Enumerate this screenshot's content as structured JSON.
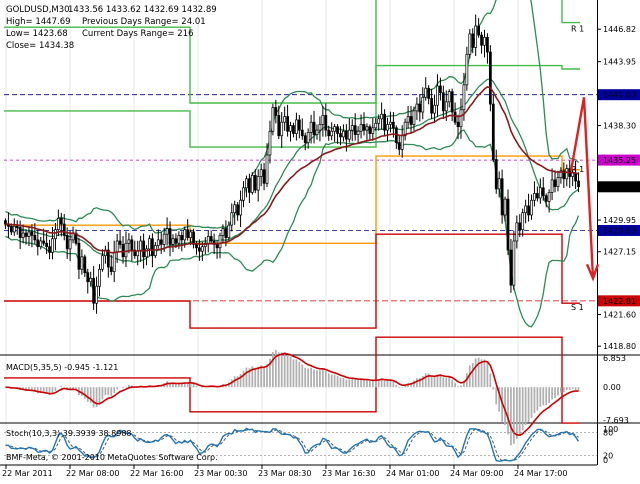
{
  "header": {
    "symbol": "GOLDUSD,M30",
    "ohlc": "1433.56 1433.62 1432.69 1432.89",
    "high": "High= 1447.69",
    "low": "Low= 1423.68",
    "close": "Close= 1434.38",
    "prev_range": "Previous Days Range= 24.01",
    "curr_range": "Current Days Range= 216"
  },
  "colors": {
    "candle": "#000000",
    "bollinger": "#2e8b57",
    "moving_average": "#8b1a1a",
    "macd_line": "#cc0000",
    "macd_hist": "#b0b0b0",
    "stoch_main": "#1f77b4",
    "stoch_signal": "#555555",
    "pivot": "#00008b",
    "resistance": "#44bb44",
    "support": "#cc0000",
    "orange": "#ff9900",
    "magenta": "#cc00cc",
    "arrow": "#dd2222"
  },
  "chart_data": [
    {
      "type": "candlestick",
      "title": "GOLDUSD,M30",
      "x_tick_labels": [
        "22 Mar 2011",
        "22 Mar 08:00",
        "22 Mar 16:00",
        "23 Mar 00:30",
        "23 Mar 08:30",
        "23 Mar 16:30",
        "24 Mar 01:00",
        "24 Mar 09:00",
        "24 Mar 17:00"
      ],
      "y_tick_labels": [
        "1446.82",
        "1443.95",
        "1441.03",
        "1438.30",
        "1435.25",
        "1432.89",
        "1429.95",
        "1429.03",
        "1427.15",
        "1422.81",
        "1421.60",
        "1418.80"
      ],
      "y_axis": [
        {
          "label": "1446.82",
          "value": 1446.82
        },
        {
          "label": "1443.95",
          "value": 1443.95
        },
        {
          "label": "1441.03",
          "value": 1441.03,
          "tag": "pivot"
        },
        {
          "label": "1438.30",
          "value": 1438.3
        },
        {
          "label": "1435.25",
          "value": 1435.25,
          "tag": "magenta"
        },
        {
          "label": "1432.89",
          "value": 1432.89,
          "tag": "current"
        },
        {
          "label": "1429.95",
          "value": 1429.95
        },
        {
          "label": "1429.03",
          "value": 1429.03,
          "tag": "pivot"
        },
        {
          "label": "1427.15",
          "value": 1427.15
        },
        {
          "label": "1422.81",
          "value": 1422.81,
          "tag": "support"
        },
        {
          "label": "1421.60",
          "value": 1421.6
        },
        {
          "label": "1418.80",
          "value": 1418.8
        }
      ],
      "ylim": [
        1418.2,
        1449.4
      ],
      "level_labels": [
        "R 1",
        "S 1",
        "R 1"
      ],
      "close_path": [
        1429.6,
        1429.4,
        1428.9,
        1429.4,
        1429.3,
        1428.4,
        1428.8,
        1428.5,
        1428.9,
        1428.6,
        1428.2,
        1427.6,
        1428.1,
        1427.9,
        1427.6,
        1427.1,
        1428.3,
        1429.1,
        1430.1,
        1429.6,
        1428.6,
        1427.4,
        1428.2,
        1428.8,
        1427.9,
        1425.6,
        1426.7,
        1425.3,
        1424.5,
        1424.8,
        1422.6,
        1424.1,
        1425.6,
        1426.8,
        1427.3,
        1425.8,
        1425.4,
        1427.1,
        1428.1,
        1427.8,
        1426.7,
        1427.9,
        1428.2,
        1427.3,
        1426.8,
        1427.2,
        1428.1,
        1426.7,
        1427.4,
        1428.3,
        1426.8,
        1427.7,
        1428.2,
        1427.8,
        1428.7,
        1429.2,
        1427.8,
        1428.3,
        1427.9,
        1428.6,
        1428.2,
        1429.1,
        1428.4,
        1428.9,
        1427.8,
        1427.5,
        1427.2,
        1427.6,
        1427.9,
        1428.5,
        1428.1,
        1427.8,
        1427.5,
        1428.6,
        1429.2,
        1428.4,
        1429.5,
        1430.6,
        1431.3,
        1430.4,
        1431.7,
        1432.8,
        1433.6,
        1432.4,
        1433.9,
        1432.6,
        1433.8,
        1434.4,
        1433.2,
        1435.7,
        1437.8,
        1439.9,
        1439.2,
        1437.4,
        1438.6,
        1439.1,
        1437.8,
        1438.3,
        1437.6,
        1438.8,
        1437.9,
        1437.4,
        1436.8,
        1437.7,
        1438.6,
        1437.5,
        1437.9,
        1438.4,
        1439.2,
        1437.9,
        1437.4,
        1437.8,
        1438.2,
        1437.6,
        1437.3,
        1437.8,
        1437.1,
        1437.9,
        1438.3,
        1437.5,
        1437.8,
        1438.4,
        1437.9,
        1438.2,
        1437.6,
        1438.1,
        1438.5,
        1438.9,
        1439.3,
        1437.9,
        1438.4,
        1438.6,
        1438.1,
        1436.8,
        1436.2,
        1437.4,
        1438.6,
        1439.1,
        1438.4,
        1439.6,
        1440.2,
        1439.5,
        1440.8,
        1441.6,
        1440.7,
        1439.4,
        1440.1,
        1441.8,
        1441.2,
        1439.6,
        1440.4,
        1441.3,
        1439.5,
        1438.6,
        1438.2,
        1439.7,
        1441.9,
        1444.6,
        1446.4,
        1445.2,
        1447.1,
        1446.3,
        1445.4,
        1446.1,
        1444.8,
        1440.2,
        1435.3,
        1432.7,
        1433.6,
        1430.4,
        1431.8,
        1427.3,
        1424.2,
        1428.1,
        1429.7,
        1429.1,
        1430.6,
        1431.2,
        1430.4,
        1431.7,
        1432.3,
        1431.9,
        1432.8,
        1432.1,
        1431.6,
        1432.4,
        1433.5,
        1432.9,
        1433.7,
        1434.3,
        1433.6,
        1434.5,
        1433.8,
        1434.1,
        1433.4,
        1432.9
      ]
    },
    {
      "type": "bar",
      "title": "MACD(5,35,5) -0.945 -1.121",
      "y_tick_labels": [
        "6.853",
        "0.00",
        "-7.693"
      ],
      "ylim": [
        -7.693,
        6.853
      ]
    },
    {
      "type": "line",
      "title": "Stoch(10,3,3) 39.3939 38.8988",
      "y_tick_labels": [
        "80",
        "20"
      ],
      "ylim": [
        0,
        100
      ]
    }
  ],
  "footer": {
    "copyright": "BMF-Meta, © 2001-2010 MetaQuotes Software Corp."
  },
  "panels": {
    "stoch_top": "100",
    "stoch_bottom": "0"
  }
}
